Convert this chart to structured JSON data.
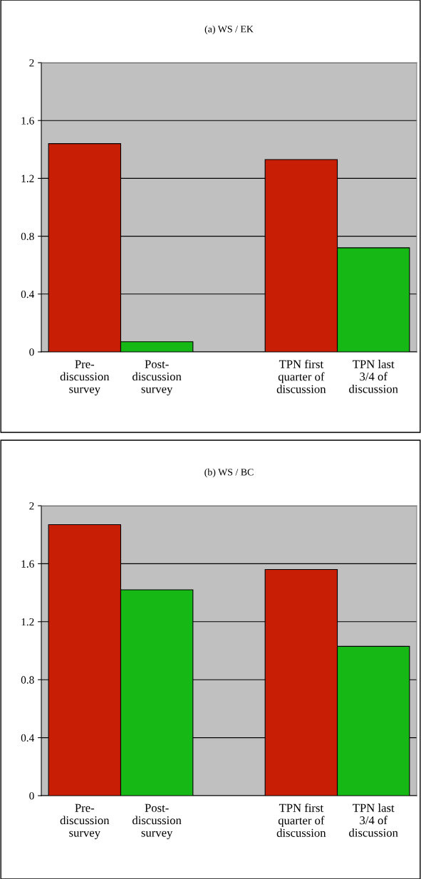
{
  "chart_data": [
    {
      "type": "bar",
      "title": "(a) WS / EK",
      "categories": [
        "Pre-\ndiscussion\nsurvey",
        "Post-\ndiscussion\nsurvey",
        null,
        "TPN first\nquarter of\ndiscussion",
        "TPN last\n3/4 of\ndiscussion"
      ],
      "series": [
        {
          "values": [
            1.44,
            0.07,
            null,
            1.33,
            0.72
          ],
          "colors": [
            "#c81e05",
            "#16b816",
            null,
            "#c81e05",
            "#16b816"
          ]
        }
      ],
      "ylim": [
        0,
        2
      ],
      "yticks": [
        0,
        0.4,
        0.8,
        1.2,
        1.6,
        2
      ],
      "grid": "y",
      "legend": false
    },
    {
      "type": "bar",
      "title": "(b) WS / BC",
      "categories": [
        "Pre-\ndiscussion\nsurvey",
        "Post-\ndiscussion\nsurvey",
        null,
        "TPN first\nquarter of\ndiscussion",
        "TPN last\n3/4 of\ndiscussion"
      ],
      "series": [
        {
          "values": [
            1.87,
            1.42,
            null,
            1.56,
            1.03
          ],
          "colors": [
            "#c81e05",
            "#16b816",
            null,
            "#c81e05",
            "#16b816"
          ]
        }
      ],
      "ylim": [
        0,
        2
      ],
      "yticks": [
        0,
        0.4,
        0.8,
        1.2,
        1.6,
        2
      ],
      "grid": "y",
      "legend": false
    }
  ]
}
